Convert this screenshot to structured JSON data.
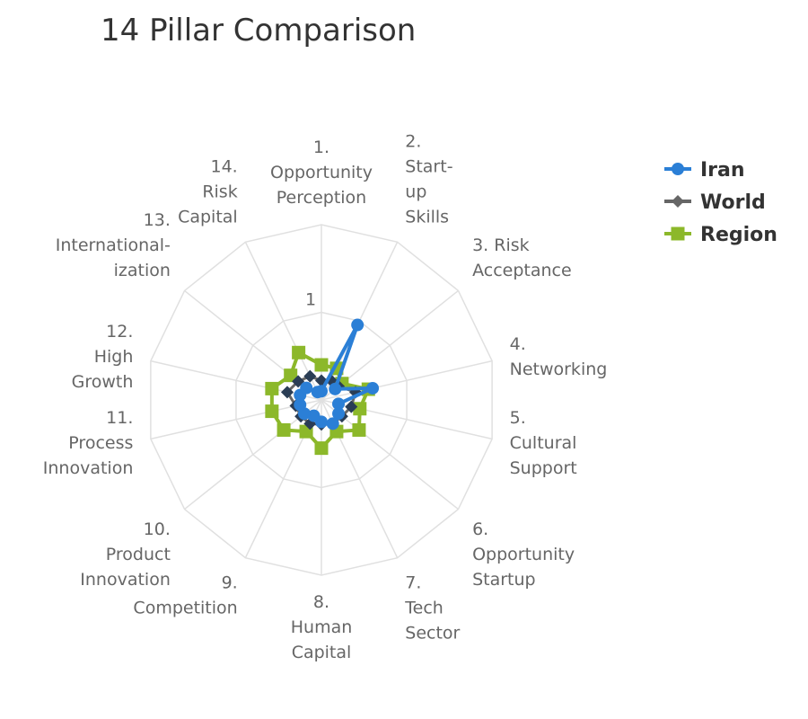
{
  "chart_data": {
    "type": "radar",
    "title": "14 Pillar Comparison",
    "categories": [
      "1. Opportunity Perception",
      "2. Start-up Skills",
      "3. Risk Acceptance",
      "4. Networking",
      "5. Cultural Support",
      "6. Opportunity Startup",
      "7. Tech Sector",
      "8. Human Capital",
      "9. Competition",
      "10. Product Innovation",
      "11. Process Innovation",
      "12. High Growth",
      "13. International-ization",
      "14. Risk Capital"
    ],
    "category_lines": [
      [
        "1.",
        "Opportunity",
        "Perception"
      ],
      [
        "2.",
        "Start-",
        "up",
        "Skills"
      ],
      [
        "3. Risk",
        "Acceptance"
      ],
      [
        "4.",
        "Networking"
      ],
      [
        "5.",
        "Cultural",
        "Support"
      ],
      [
        "6.",
        "Opportunity",
        "Startup"
      ],
      [
        "7.",
        "Tech",
        "Sector"
      ],
      [
        "8.",
        "Human",
        "Capital"
      ],
      [
        "9.",
        "Competition"
      ],
      [
        "10.",
        "Product",
        "Innovation"
      ],
      [
        "11.",
        "Process",
        "Innovation"
      ],
      [
        "12.",
        "High",
        "Growth"
      ],
      [
        "13.",
        "International-",
        "ization"
      ],
      [
        "14.",
        "Risk",
        "Capital"
      ]
    ],
    "y_tick": {
      "value": 1,
      "label": "1"
    },
    "ylim": [
      0,
      2
    ],
    "grid": true,
    "legend": "top-right",
    "series": [
      {
        "name": "Iran",
        "color": "#2b7fd6",
        "marker": "circle",
        "values": [
          0.1,
          0.95,
          0.2,
          0.6,
          0.2,
          0.25,
          0.3,
          0.25,
          0.2,
          0.25,
          0.25,
          0.25,
          0.22,
          0.1
        ]
      },
      {
        "name": "World",
        "color": "#666666",
        "marker": "diamond",
        "values": [
          0.22,
          0.25,
          0.25,
          0.4,
          0.35,
          0.3,
          0.3,
          0.28,
          0.3,
          0.3,
          0.3,
          0.4,
          0.34,
          0.3
        ]
      },
      {
        "name": "Region",
        "color": "#8cb82a",
        "marker": "square",
        "values": [
          0.4,
          0.4,
          0.3,
          0.55,
          0.45,
          0.55,
          0.4,
          0.55,
          0.4,
          0.55,
          0.58,
          0.58,
          0.45,
          0.6
        ]
      }
    ]
  }
}
